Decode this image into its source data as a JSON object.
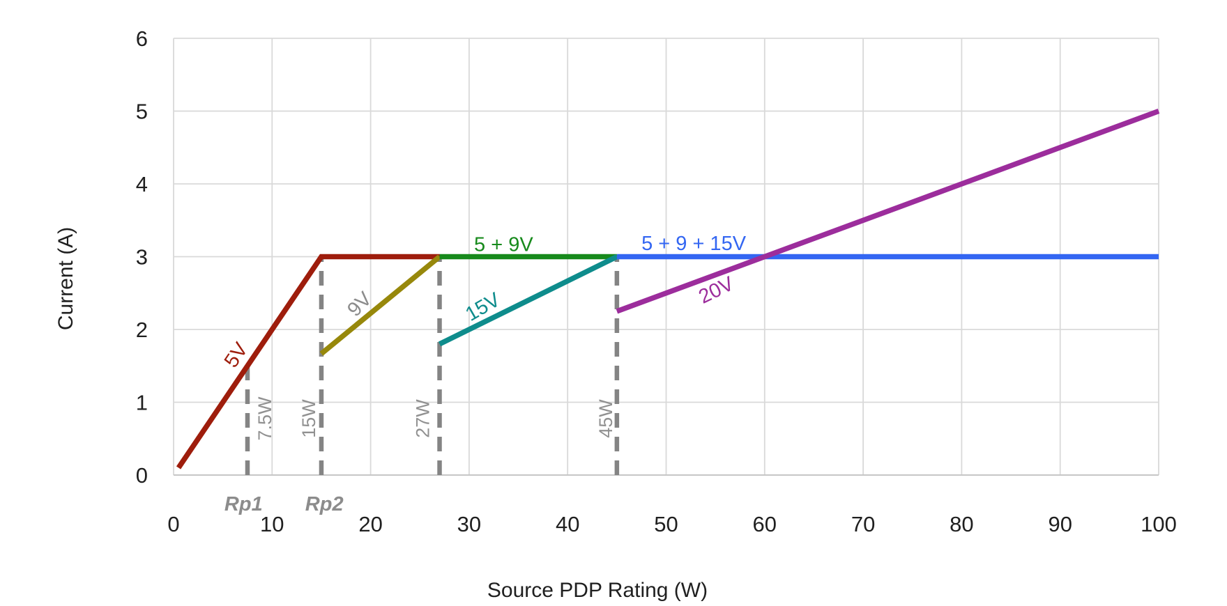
{
  "chart_data": {
    "type": "line",
    "title": "",
    "xlabel": "Source PDP Rating (W)",
    "ylabel": "Current (A)",
    "xlim": [
      0,
      100
    ],
    "ylim": [
      0,
      6
    ],
    "x_ticks": [
      0,
      10,
      20,
      30,
      40,
      50,
      60,
      70,
      80,
      90,
      100
    ],
    "y_ticks": [
      0,
      1,
      2,
      3,
      4,
      5,
      6
    ],
    "grid": true,
    "legend_position": "inline-labels",
    "series": [
      {
        "name": "5V",
        "color": "#9E1D0C",
        "points": [
          [
            0.5,
            0.1
          ],
          [
            15,
            3
          ],
          [
            27,
            3
          ]
        ]
      },
      {
        "name": "9V",
        "color": "#97880B",
        "points": [
          [
            15,
            1.667
          ],
          [
            27,
            3
          ]
        ]
      },
      {
        "name": "5 + 9V",
        "color": "#178A1C",
        "points": [
          [
            27,
            3
          ],
          [
            45,
            3
          ]
        ]
      },
      {
        "name": "15V",
        "color": "#0E8C8C",
        "points": [
          [
            27,
            1.8
          ],
          [
            45,
            3
          ]
        ]
      },
      {
        "name": "5 + 9 + 15V",
        "color": "#3366F2",
        "points": [
          [
            45,
            3
          ],
          [
            100,
            3
          ]
        ]
      },
      {
        "name": "20V",
        "color": "#9C2D9C",
        "points": [
          [
            45,
            2.25
          ],
          [
            100,
            5
          ]
        ]
      }
    ],
    "series_labels": [
      {
        "text": "5V",
        "x": 6.37,
        "y": 1.646,
        "rotation": -56,
        "color": "#9E1D0C"
      },
      {
        "text": "9V",
        "x": 18.9,
        "y": 2.344,
        "rotation": -46,
        "color": "#8C8C8C"
      },
      {
        "text": "15V",
        "x": 31.4,
        "y": 2.306,
        "rotation": -30,
        "color": "#0E8C8C"
      },
      {
        "text": "20V",
        "x": 55.1,
        "y": 2.536,
        "rotation": -26,
        "color": "#9C2D9C"
      },
      {
        "text": "5 + 9V",
        "x": 33.5,
        "y": 3.165,
        "rotation": 0,
        "color": "#178A1C"
      },
      {
        "text": "5 + 9 + 15V",
        "x": 52.8,
        "y": 3.175,
        "rotation": 0,
        "color": "#3366F2"
      }
    ],
    "reference_lines": [
      {
        "label": "7.5W",
        "x": 7.5,
        "y_top": 1.5,
        "label_dx": 25
      },
      {
        "label": "15W",
        "x": 15,
        "y_top": 3,
        "label_dx": -18
      },
      {
        "label": "27W",
        "x": 27,
        "y_top": 3,
        "label_dx": -24
      },
      {
        "label": "45W",
        "x": 45,
        "y_top": 3,
        "label_dx": -16
      }
    ],
    "axis_annotations": [
      {
        "text": "Rp1",
        "x": 7.1
      },
      {
        "text": "Rp2",
        "x": 15.3
      }
    ]
  },
  "style": {
    "background": "#ffffff",
    "grid_color": "#D9D9D9",
    "axis_line_color": "#C6C6C6",
    "dash_color": "#848484",
    "tick_label_color": "#1F1F1F",
    "ref_label_color": "#919191",
    "rp_label_color": "#8C8C8C"
  }
}
